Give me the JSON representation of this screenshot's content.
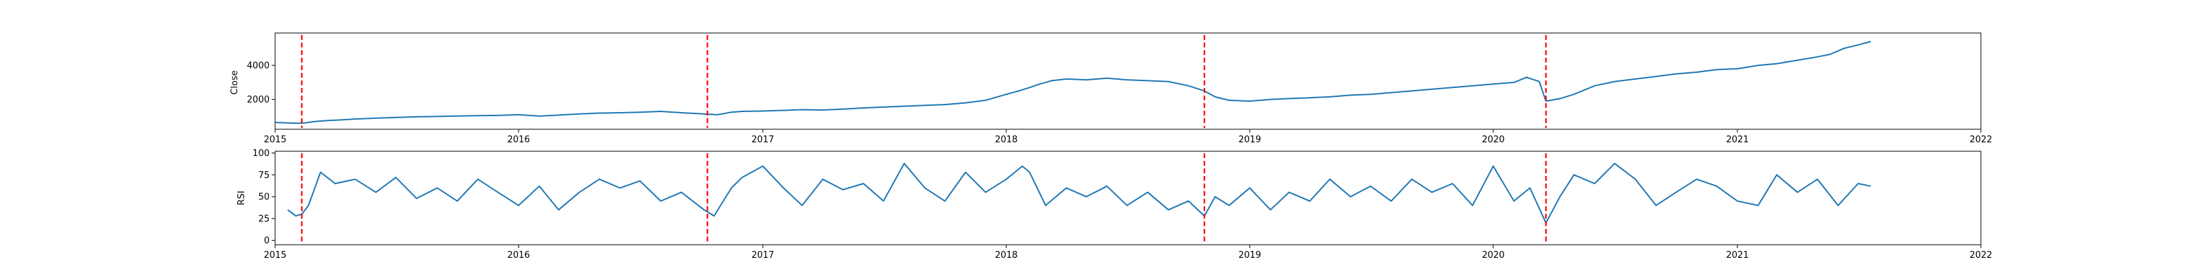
{
  "chart_data": [
    {
      "type": "line",
      "title": "",
      "xlabel": "",
      "ylabel": "Close",
      "xlim": [
        "2015-01-01",
        "2022-01-01"
      ],
      "ylim": [
        250,
        5900
      ],
      "x_ticks": [
        "2015",
        "2016",
        "2017",
        "2018",
        "2019",
        "2020",
        "2021",
        "2022"
      ],
      "y_ticks": [
        2000,
        4000
      ],
      "grid": false,
      "line_color": "#1f77b4",
      "marker_color": "#ff0000",
      "markers": [
        "2015-02-10",
        "2016-10-10",
        "2018-10-25",
        "2020-03-20"
      ],
      "series": [
        {
          "x": [
            "2015-01-01",
            "2015-01-20",
            "2015-02-05",
            "2015-02-15",
            "2015-03-01",
            "2015-03-20",
            "2015-04-10",
            "2015-05-01",
            "2015-06-01",
            "2015-07-01",
            "2015-08-01",
            "2015-09-01",
            "2015-10-01",
            "2015-11-01",
            "2015-12-01",
            "2016-01-01",
            "2016-02-01",
            "2016-03-01",
            "2016-04-01",
            "2016-05-01",
            "2016-06-01",
            "2016-07-01",
            "2016-08-01",
            "2016-09-01",
            "2016-10-05",
            "2016-10-25",
            "2016-11-15",
            "2016-12-01",
            "2017-01-01",
            "2017-02-01",
            "2017-03-01",
            "2017-04-01",
            "2017-05-01",
            "2017-06-01",
            "2017-07-01",
            "2017-08-01",
            "2017-09-01",
            "2017-10-01",
            "2017-11-01",
            "2017-12-01",
            "2018-01-01",
            "2018-01-20",
            "2018-02-05",
            "2018-02-20",
            "2018-03-10",
            "2018-04-01",
            "2018-05-01",
            "2018-06-01",
            "2018-07-01",
            "2018-08-01",
            "2018-09-01",
            "2018-10-01",
            "2018-10-25",
            "2018-11-10",
            "2018-12-01",
            "2019-01-01",
            "2019-02-01",
            "2019-03-01",
            "2019-04-01",
            "2019-05-01",
            "2019-06-01",
            "2019-07-01",
            "2019-08-01",
            "2019-09-01",
            "2019-10-01",
            "2019-11-01",
            "2019-12-01",
            "2020-01-01",
            "2020-02-01",
            "2020-02-20",
            "2020-03-10",
            "2020-03-20",
            "2020-04-10",
            "2020-05-01",
            "2020-06-01",
            "2020-07-01",
            "2020-08-01",
            "2020-09-01",
            "2020-10-01",
            "2020-11-01",
            "2020-12-01",
            "2021-01-01",
            "2021-02-01",
            "2021-03-01",
            "2021-04-01",
            "2021-05-01",
            "2021-05-20",
            "2021-06-10",
            "2021-07-01",
            "2021-07-20"
          ],
          "y": [
            650,
            620,
            600,
            620,
            700,
            760,
            800,
            850,
            900,
            940,
            980,
            1000,
            1030,
            1050,
            1060,
            1100,
            1020,
            1080,
            1150,
            1200,
            1220,
            1250,
            1300,
            1220,
            1150,
            1100,
            1250,
            1300,
            1320,
            1360,
            1400,
            1380,
            1430,
            1500,
            1550,
            1600,
            1650,
            1700,
            1800,
            1950,
            2300,
            2500,
            2700,
            2900,
            3100,
            3200,
            3150,
            3250,
            3150,
            3100,
            3050,
            2800,
            2500,
            2150,
            1950,
            1900,
            2000,
            2050,
            2100,
            2150,
            2250,
            2300,
            2400,
            2500,
            2600,
            2700,
            2800,
            2900,
            3000,
            3300,
            3050,
            1900,
            2050,
            2300,
            2800,
            3050,
            3200,
            3350,
            3500,
            3600,
            3750,
            3800,
            4000,
            4100,
            4300,
            4500,
            4650,
            5000,
            5200,
            5400
          ]
        }
      ]
    },
    {
      "type": "line",
      "title": "",
      "xlabel": "",
      "ylabel": "RSI",
      "xlim": [
        "2015-01-01",
        "2022-01-01"
      ],
      "ylim": [
        -5,
        102
      ],
      "x_ticks": [
        "2015",
        "2016",
        "2017",
        "2018",
        "2019",
        "2020",
        "2021",
        "2022"
      ],
      "y_ticks": [
        0,
        25,
        50,
        75,
        100
      ],
      "grid": false,
      "line_color": "#1f77b4",
      "marker_color": "#ff0000",
      "markers": [
        "2015-02-10",
        "2016-10-10",
        "2018-10-25",
        "2020-03-20"
      ],
      "series": [
        {
          "x": [
            "2015-01-20",
            "2015-02-01",
            "2015-02-10",
            "2015-02-20",
            "2015-03-10",
            "2015-04-01",
            "2015-05-01",
            "2015-06-01",
            "2015-07-01",
            "2015-08-01",
            "2015-09-01",
            "2015-10-01",
            "2015-11-01",
            "2015-12-01",
            "2016-01-01",
            "2016-02-01",
            "2016-03-01",
            "2016-04-01",
            "2016-05-01",
            "2016-06-01",
            "2016-07-01",
            "2016-08-01",
            "2016-09-01",
            "2016-10-05",
            "2016-10-20",
            "2016-11-15",
            "2016-12-01",
            "2017-01-01",
            "2017-02-01",
            "2017-03-01",
            "2017-04-01",
            "2017-05-01",
            "2017-06-01",
            "2017-07-01",
            "2017-08-01",
            "2017-09-01",
            "2017-10-01",
            "2017-11-01",
            "2017-12-01",
            "2018-01-01",
            "2018-01-25",
            "2018-02-05",
            "2018-03-01",
            "2018-04-01",
            "2018-05-01",
            "2018-06-01",
            "2018-07-01",
            "2018-08-01",
            "2018-09-01",
            "2018-10-01",
            "2018-10-25",
            "2018-11-10",
            "2018-12-01",
            "2019-01-01",
            "2019-02-01",
            "2019-03-01",
            "2019-04-01",
            "2019-05-01",
            "2019-06-01",
            "2019-07-01",
            "2019-08-01",
            "2019-09-01",
            "2019-10-01",
            "2019-11-01",
            "2019-12-01",
            "2020-01-01",
            "2020-02-01",
            "2020-02-25",
            "2020-03-20",
            "2020-04-10",
            "2020-05-01",
            "2020-06-01",
            "2020-07-01",
            "2020-08-01",
            "2020-09-01",
            "2020-10-01",
            "2020-11-01",
            "2020-12-01",
            "2021-01-01",
            "2021-02-01",
            "2021-03-01",
            "2021-04-01",
            "2021-05-01",
            "2021-06-01",
            "2021-07-01",
            "2021-07-20"
          ],
          "y": [
            35,
            28,
            30,
            40,
            78,
            65,
            70,
            55,
            72,
            48,
            60,
            45,
            70,
            55,
            40,
            62,
            35,
            55,
            70,
            60,
            68,
            45,
            55,
            35,
            28,
            60,
            72,
            85,
            60,
            40,
            70,
            58,
            65,
            45,
            88,
            60,
            45,
            78,
            55,
            70,
            85,
            78,
            40,
            60,
            50,
            62,
            40,
            55,
            35,
            45,
            28,
            50,
            40,
            60,
            35,
            55,
            45,
            70,
            50,
            62,
            45,
            70,
            55,
            65,
            40,
            85,
            45,
            60,
            20,
            50,
            75,
            65,
            88,
            70,
            40,
            55,
            70,
            62,
            45,
            40,
            75,
            55,
            70,
            40,
            65,
            62
          ]
        }
      ]
    }
  ]
}
